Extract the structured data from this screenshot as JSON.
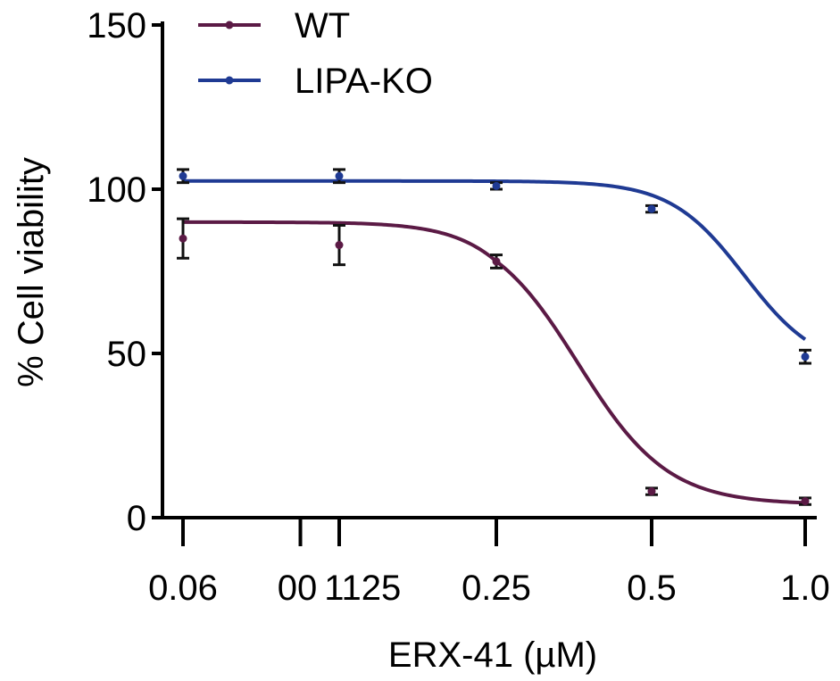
{
  "chart_data": {
    "type": "line",
    "title": "",
    "xlabel": "ERX-41 (µM)",
    "ylabel": "% Cell viability",
    "x_scale": "log2",
    "x_ticks": [
      0.06,
      0.1125,
      0.25,
      0.5,
      1.0
    ],
    "x_tick_labels": [
      "0.06",
      "00 1125",
      "0.25",
      "0.5",
      "1.0"
    ],
    "ylim": [
      0,
      150
    ],
    "y_ticks": [
      0,
      50,
      100,
      150
    ],
    "y_tick_labels": [
      "0",
      "50",
      "100",
      "150"
    ],
    "grid": false,
    "legend_position": "top-left",
    "series": [
      {
        "name": "WT",
        "color": "#5b1a45",
        "x": [
          0.06,
          0.1125,
          0.25,
          0.5,
          1.0
        ],
        "y": [
          85,
          83,
          78,
          8,
          5
        ],
        "error": [
          6,
          6,
          2,
          1,
          1
        ],
        "fit": {
          "top": 90,
          "bottom": 4,
          "ic50": 0.36,
          "hill": 5
        }
      },
      {
        "name": "LIPA-KO",
        "color": "#1f3a93",
        "x": [
          0.06,
          0.1125,
          0.25,
          0.5,
          1.0
        ],
        "y": [
          104,
          104,
          101,
          94,
          49
        ],
        "error": [
          2,
          2,
          1,
          1,
          2
        ],
        "fit": {
          "top": 102.5,
          "bottom": 45,
          "ic50": 0.76,
          "hill": 6
        }
      }
    ]
  }
}
